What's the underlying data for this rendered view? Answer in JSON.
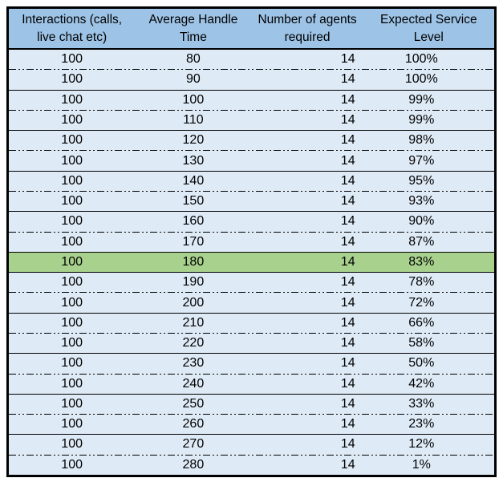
{
  "colors": {
    "header_bg": "#9DC3E6",
    "row_bg": "#DEEAF6",
    "highlight_bg": "#A9D18E",
    "border": "#000000",
    "text": "#000000"
  },
  "table": {
    "headers": [
      {
        "id": "interactions",
        "label": "Interactions (calls, live chat etc)"
      },
      {
        "id": "average_handle_time",
        "label": "Average Handle Time"
      },
      {
        "id": "agents_required",
        "label": "Number of agents required"
      },
      {
        "id": "service_level",
        "label": "Expected Service Level"
      }
    ],
    "rows": [
      {
        "interactions": "100",
        "aht": "80",
        "agents": "14",
        "service": "100%",
        "highlight": false
      },
      {
        "interactions": "100",
        "aht": "90",
        "agents": "14",
        "service": "100%",
        "highlight": false
      },
      {
        "interactions": "100",
        "aht": "100",
        "agents": "14",
        "service": "99%",
        "highlight": false
      },
      {
        "interactions": "100",
        "aht": "110",
        "agents": "14",
        "service": "99%",
        "highlight": false
      },
      {
        "interactions": "100",
        "aht": "120",
        "agents": "14",
        "service": "98%",
        "highlight": false
      },
      {
        "interactions": "100",
        "aht": "130",
        "agents": "14",
        "service": "97%",
        "highlight": false
      },
      {
        "interactions": "100",
        "aht": "140",
        "agents": "14",
        "service": "95%",
        "highlight": false
      },
      {
        "interactions": "100",
        "aht": "150",
        "agents": "14",
        "service": "93%",
        "highlight": false
      },
      {
        "interactions": "100",
        "aht": "160",
        "agents": "14",
        "service": "90%",
        "highlight": false
      },
      {
        "interactions": "100",
        "aht": "170",
        "agents": "14",
        "service": "87%",
        "highlight": false
      },
      {
        "interactions": "100",
        "aht": "180",
        "agents": "14",
        "service": "83%",
        "highlight": true
      },
      {
        "interactions": "100",
        "aht": "190",
        "agents": "14",
        "service": "78%",
        "highlight": false
      },
      {
        "interactions": "100",
        "aht": "200",
        "agents": "14",
        "service": "72%",
        "highlight": false
      },
      {
        "interactions": "100",
        "aht": "210",
        "agents": "14",
        "service": "66%",
        "highlight": false
      },
      {
        "interactions": "100",
        "aht": "220",
        "agents": "14",
        "service": "58%",
        "highlight": false
      },
      {
        "interactions": "100",
        "aht": "230",
        "agents": "14",
        "service": "50%",
        "highlight": false
      },
      {
        "interactions": "100",
        "aht": "240",
        "agents": "14",
        "service": "42%",
        "highlight": false
      },
      {
        "interactions": "100",
        "aht": "250",
        "agents": "14",
        "service": "33%",
        "highlight": false
      },
      {
        "interactions": "100",
        "aht": "260",
        "agents": "14",
        "service": "23%",
        "highlight": false
      },
      {
        "interactions": "100",
        "aht": "270",
        "agents": "14",
        "service": "12%",
        "highlight": false
      },
      {
        "interactions": "100",
        "aht": "280",
        "agents": "14",
        "service": "1%",
        "highlight": false
      }
    ]
  }
}
